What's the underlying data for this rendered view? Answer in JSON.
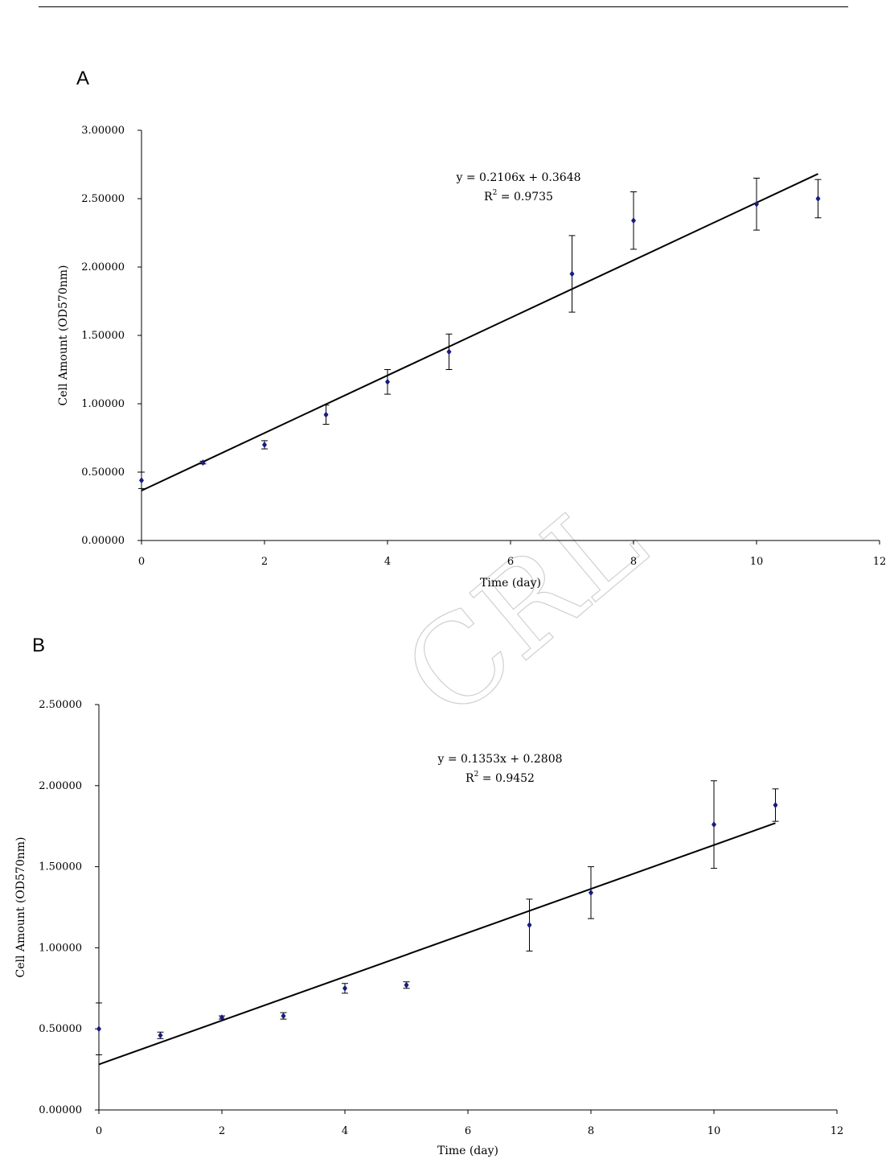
{
  "panels": [
    {
      "label": "A"
    },
    {
      "label": "B"
    }
  ],
  "watermark": "CRL",
  "chart_data": [
    {
      "type": "scatter",
      "title": "",
      "xlabel": "Time (day)",
      "ylabel": "Cell Amount (OD570nm)",
      "xlim": [
        0,
        12
      ],
      "ylim": [
        0,
        3
      ],
      "xticks": [
        0,
        2,
        4,
        6,
        8,
        10,
        12
      ],
      "yticks": [
        "0.00000",
        "0.50000",
        "1.00000",
        "1.50000",
        "2.00000",
        "2.50000",
        "3.00000"
      ],
      "yticks_values": [
        0,
        0.5,
        1,
        1.5,
        2,
        2.5,
        3
      ],
      "grid": false,
      "marker_color": "#1a1a80",
      "series": [
        {
          "x": [
            0,
            1,
            2,
            3,
            4,
            5,
            7,
            8,
            10,
            11
          ],
          "y": [
            0.44,
            0.57,
            0.7,
            0.92,
            1.16,
            1.38,
            1.95,
            2.34,
            2.46,
            2.5
          ],
          "error": [
            0.06,
            0.01,
            0.03,
            0.07,
            0.09,
            0.13,
            0.28,
            0.21,
            0.19,
            0.14
          ]
        }
      ],
      "trendline": {
        "slope": 0.2106,
        "intercept": 0.3648,
        "x_range": [
          0,
          11
        ]
      },
      "equation": "y = 0.2106x + 0.3648",
      "r2_prefix": "R",
      "r2_exp": "2",
      "r2_value": " = 0.9735"
    },
    {
      "type": "scatter",
      "title": "",
      "xlabel": "Time (day)",
      "ylabel": "Cell Amount (OD570nm)",
      "xlim": [
        0,
        12
      ],
      "ylim": [
        0,
        2.5
      ],
      "xticks": [
        0,
        2,
        4,
        6,
        8,
        10,
        12
      ],
      "yticks": [
        "0.00000",
        "0.50000",
        "1.00000",
        "1.50000",
        "2.00000",
        "2.50000"
      ],
      "yticks_values": [
        0,
        0.5,
        1,
        1.5,
        2,
        2.5
      ],
      "grid": false,
      "marker_color": "#1a1a80",
      "series": [
        {
          "x": [
            0,
            1,
            2,
            3,
            4,
            5,
            7,
            8,
            10,
            11
          ],
          "y": [
            0.5,
            0.46,
            0.57,
            0.58,
            0.75,
            0.77,
            1.14,
            1.34,
            1.76,
            1.88
          ],
          "error": [
            0.16,
            0.02,
            0.01,
            0.02,
            0.03,
            0.02,
            0.16,
            0.16,
            0.27,
            0.1
          ]
        }
      ],
      "trendline": {
        "slope": 0.1353,
        "intercept": 0.2808,
        "x_range": [
          0,
          11
        ]
      },
      "equation": "y = 0.1353x + 0.2808",
      "r2_prefix": "R",
      "r2_exp": "2",
      "r2_value": " = 0.9452"
    }
  ]
}
